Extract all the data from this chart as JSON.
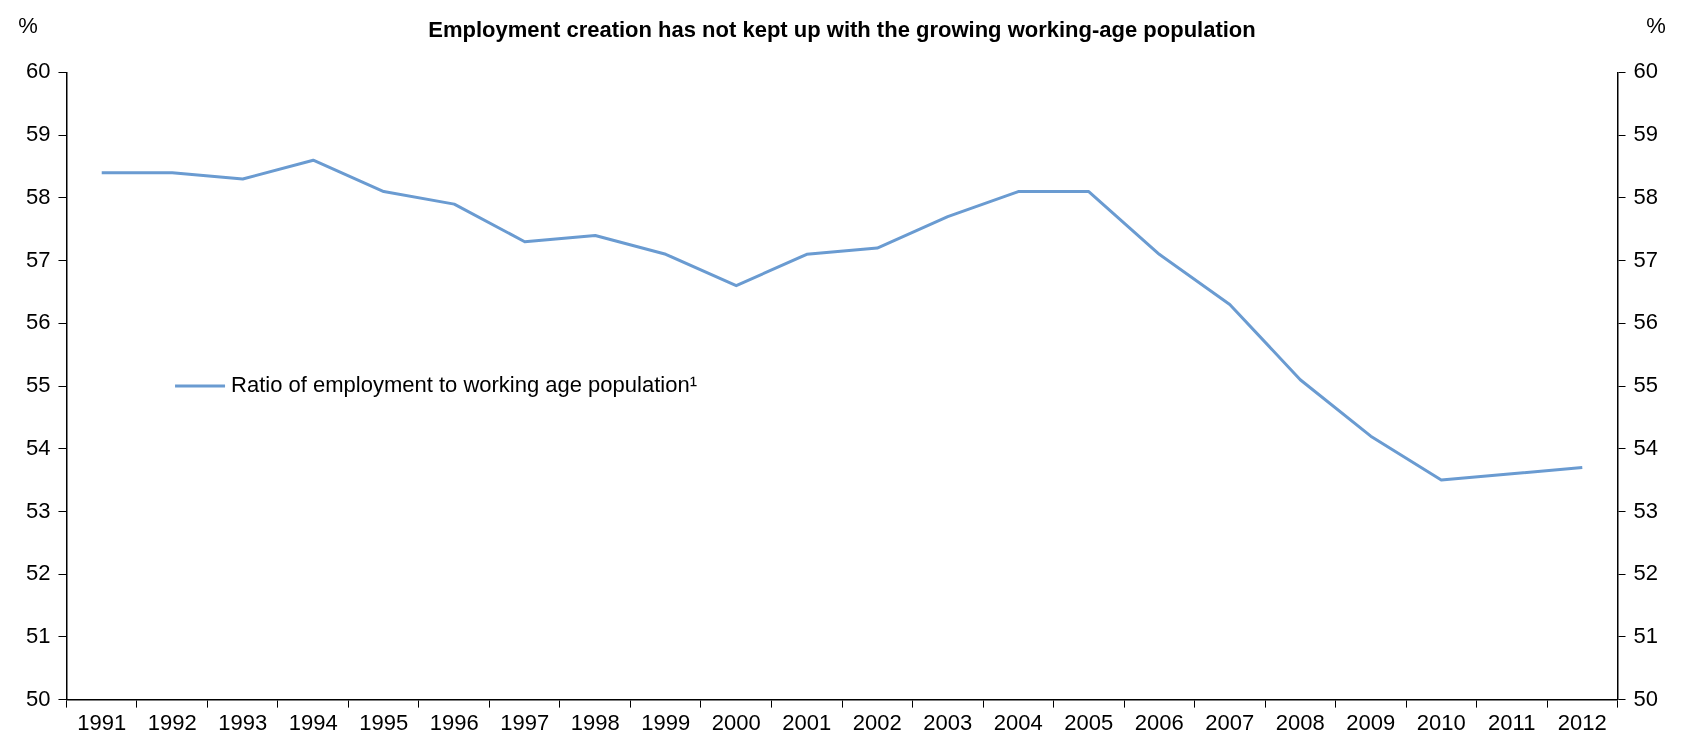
{
  "chart_data": {
    "type": "line",
    "title": "Employment creation has not kept up with the growing working-age population",
    "ylabel": "%",
    "y2label": "%",
    "categories": [
      "1991",
      "1992",
      "1993",
      "1994",
      "1995",
      "1996",
      "1997",
      "1998",
      "1999",
      "2000",
      "2001",
      "2002",
      "2003",
      "2004",
      "2005",
      "2006",
      "2007",
      "2008",
      "2009",
      "2010",
      "2011",
      "2012"
    ],
    "series": [
      {
        "name": "Ratio of employment to working age population¹",
        "color": "#6a9bd1",
        "values": [
          58.4,
          58.4,
          58.3,
          58.6,
          58.1,
          57.9,
          57.3,
          57.4,
          57.1,
          56.6,
          57.1,
          57.2,
          57.7,
          58.1,
          58.1,
          57.1,
          56.3,
          55.1,
          54.2,
          53.5,
          53.6,
          53.7
        ]
      }
    ],
    "ylim": [
      50,
      60
    ],
    "yticks": [
      50,
      51,
      52,
      53,
      54,
      55,
      56,
      57,
      58,
      59,
      60
    ],
    "y2lim": [
      50,
      60
    ],
    "y2ticks": [
      50,
      51,
      52,
      53,
      54,
      55,
      56,
      57,
      58,
      59,
      60
    ],
    "grid": false,
    "legend": "left",
    "marker": "none",
    "line_style": "solid"
  }
}
